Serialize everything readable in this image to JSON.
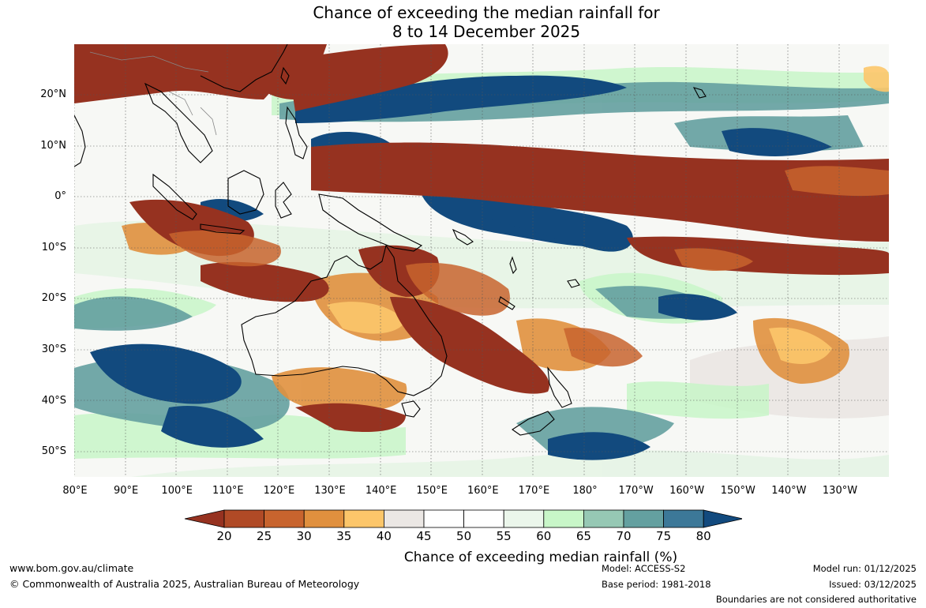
{
  "title": {
    "line1": "Chance of exceeding the median rainfall for",
    "line2": "8 to 14 December 2025"
  },
  "map": {
    "lat_labels": [
      "20°N",
      "10°N",
      "0°",
      "10°S",
      "20°S",
      "30°S",
      "40°S",
      "50°S"
    ],
    "lon_labels": [
      "80°E",
      "90°E",
      "100°E",
      "110°E",
      "120°E",
      "130°E",
      "140°E",
      "150°E",
      "160°E",
      "170°E",
      "180°",
      "170°W",
      "160°W",
      "150°W",
      "140°W",
      "130°W"
    ],
    "gridline_style": "dotted",
    "coastline_color": "#000000",
    "border_color": "#888888"
  },
  "colorbar": {
    "ticks": [
      "20",
      "25",
      "30",
      "35",
      "40",
      "45",
      "50",
      "55",
      "60",
      "65",
      "70",
      "75",
      "80"
    ],
    "colors": [
      "#963220",
      "#b04a26",
      "#c8642e",
      "#e0903e",
      "#fcc66a",
      "#ebe7e4",
      "#ffffff",
      "#ffffff",
      "#ebf6eb",
      "#c8f6c8",
      "#96c8b4",
      "#64a0a0",
      "#3c7898",
      "#124a7e"
    ],
    "title": "Chance of exceeding median rainfall (%)"
  },
  "footer": {
    "website": "www.bom.gov.au/climate",
    "copyright": "© Commonwealth of Australia 2025, Australian Bureau of Meteorology",
    "model": "Model: ACCESS-S2",
    "base_period": "Base period: 1981-2018",
    "model_run": "Model run: 01/12/2025",
    "issued": "Issued: 03/12/2025",
    "boundaries_note": "Boundaries are not considered authoritative"
  }
}
